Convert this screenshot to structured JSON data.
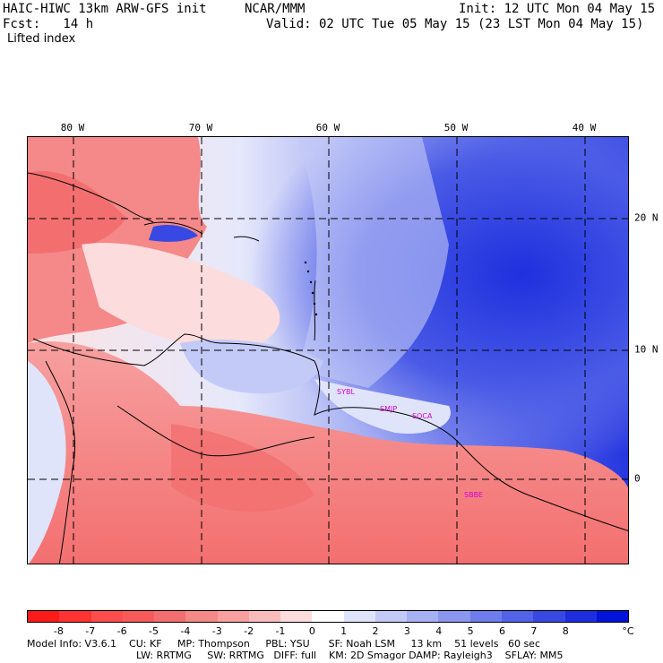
{
  "header": {
    "title_left": "HAIC-HIWC 13km ARW-GFS init",
    "org": "NCAR/MMM",
    "init": "Init: 12 UTC Mon 04 May 15",
    "fcst": "Fcst:   14 h",
    "valid": "Valid: 02 UTC Tue 05 May 15 (23 LST Mon 04 May 15)",
    "field": "Lifted index"
  },
  "map": {
    "lon_labels": [
      "80 W",
      "70 W",
      "60 W",
      "50 W",
      "40 W"
    ],
    "lat_labels": [
      "20 N",
      "10 N",
      "0"
    ],
    "stations": [
      "SYBL",
      "SMJP",
      "SOCA",
      "SBBE"
    ]
  },
  "colorbar": {
    "labels": [
      "-8",
      "-7",
      "-6",
      "-5",
      "-4",
      "-3",
      "-2",
      "-1",
      "0",
      "1",
      "2",
      "3",
      "4",
      "5",
      "6",
      "7",
      "8"
    ],
    "unit": "°C",
    "colors": [
      "#ff1a1a",
      "#ff3333",
      "#ff4d4d",
      "#f85a5a",
      "#f36f6f",
      "#f58888",
      "#f7a0a0",
      "#f9bcbc",
      "#fcdcdc",
      "#ffffff",
      "#dfe4fb",
      "#c3caf7",
      "#a7b0f3",
      "#8b96ef",
      "#6f7ceb",
      "#5462e7",
      "#3848e3",
      "#1c2edf",
      "#0014d9"
    ]
  },
  "footer": {
    "line1": "Model Info: V3.6.1    CU: KF     MP: Thompson     PBL: YSU      SF: Noah LSM     13 km    51 levels   60 sec",
    "line2": "LW: RRTMG     SW: RRTMG   DIFF: full    KM: 2D Smagor DAMP: Rayleigh3    SFLAY: MM5"
  }
}
